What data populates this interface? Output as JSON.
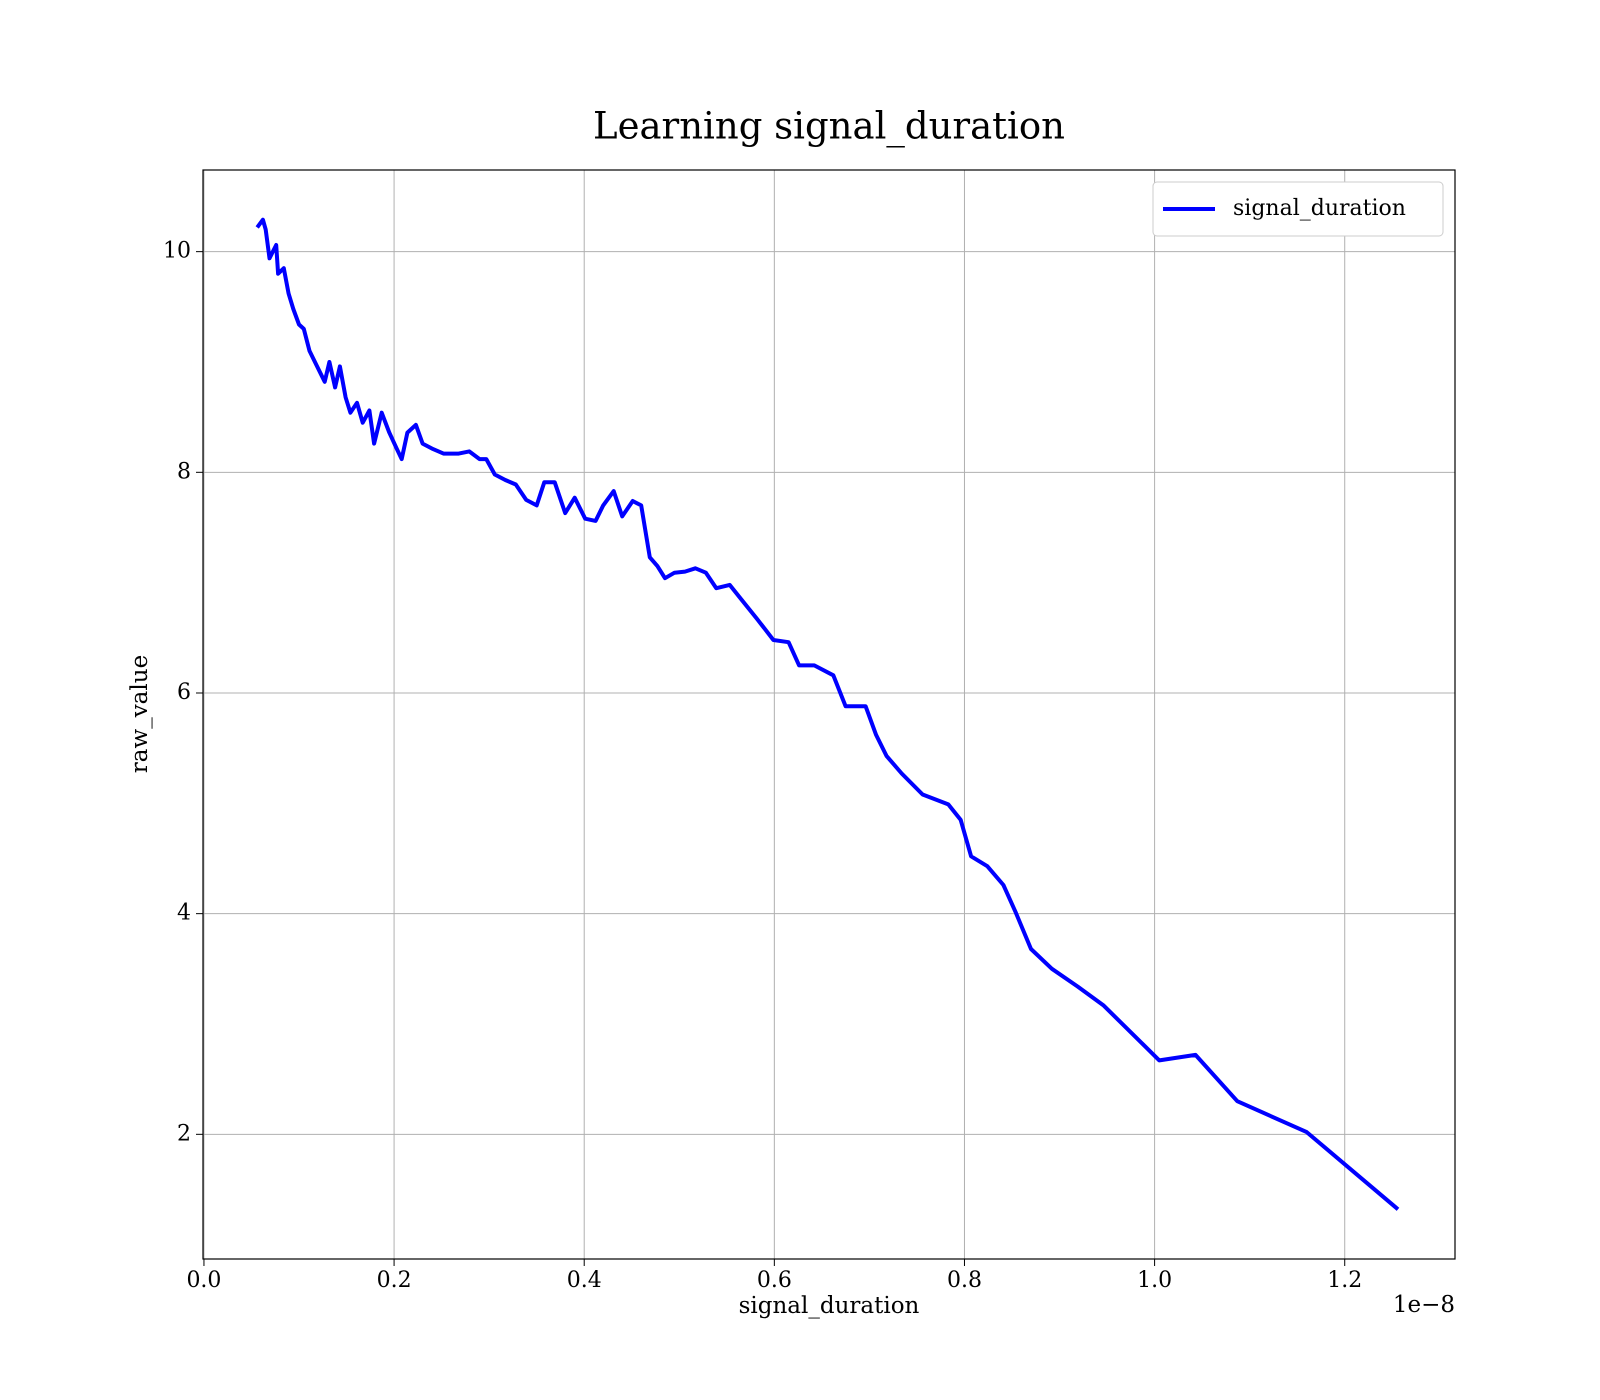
{
  "chart_data": {
    "type": "line",
    "title": "Learning signal_duration",
    "x_label": "signal_duration",
    "y_label": "raw_value",
    "x_offset_label": "1e−8",
    "x": [
      0.056,
      0.062,
      0.065,
      0.069,
      0.076,
      0.078,
      0.084,
      0.089,
      0.094,
      0.1,
      0.105,
      0.111,
      0.119,
      0.127,
      0.132,
      0.138,
      0.143,
      0.149,
      0.154,
      0.161,
      0.167,
      0.174,
      0.179,
      0.187,
      0.195,
      0.203,
      0.208,
      0.214,
      0.223,
      0.23,
      0.241,
      0.252,
      0.268,
      0.279,
      0.29,
      0.297,
      0.306,
      0.317,
      0.328,
      0.339,
      0.35,
      0.358,
      0.369,
      0.38,
      0.39,
      0.401,
      0.412,
      0.42,
      0.431,
      0.44,
      0.451,
      0.46,
      0.469,
      0.477,
      0.485,
      0.495,
      0.506,
      0.517,
      0.528,
      0.539,
      0.553,
      0.566,
      0.582,
      0.599,
      0.615,
      0.626,
      0.642,
      0.662,
      0.675,
      0.696,
      0.707,
      0.718,
      0.734,
      0.756,
      0.783,
      0.796,
      0.807,
      0.824,
      0.841,
      0.854,
      0.87,
      0.892,
      0.919,
      0.946,
      1.005,
      1.043,
      1.087,
      1.16,
      1.256
    ],
    "series": [
      {
        "name": "signal_duration",
        "color": "#0000ff",
        "values": [
          10.22,
          10.29,
          10.2,
          9.94,
          10.06,
          9.8,
          9.85,
          9.62,
          9.48,
          9.34,
          9.3,
          9.1,
          8.96,
          8.82,
          9.0,
          8.77,
          8.96,
          8.68,
          8.54,
          8.63,
          8.45,
          8.56,
          8.26,
          8.54,
          8.36,
          8.21,
          8.12,
          8.36,
          8.43,
          8.26,
          8.21,
          8.17,
          8.17,
          8.19,
          8.12,
          8.12,
          7.98,
          7.93,
          7.89,
          7.75,
          7.7,
          7.91,
          7.91,
          7.63,
          7.77,
          7.58,
          7.56,
          7.7,
          7.83,
          7.6,
          7.74,
          7.7,
          7.23,
          7.15,
          7.04,
          7.09,
          7.1,
          7.13,
          7.09,
          6.95,
          6.98,
          6.84,
          6.67,
          6.48,
          6.46,
          6.25,
          6.25,
          6.16,
          5.88,
          5.88,
          5.62,
          5.43,
          5.27,
          5.08,
          4.99,
          4.85,
          4.52,
          4.43,
          4.26,
          4.01,
          3.68,
          3.5,
          3.34,
          3.17,
          2.67,
          2.72,
          2.3,
          2.02,
          1.32
        ]
      }
    ],
    "xlim": [
      -0.001,
      1.316
    ],
    "ylim": [
      0.87,
      10.74
    ],
    "xticks": [
      {
        "value": 0,
        "label": "0.0"
      },
      0.2,
      0.4,
      0.6,
      0.8,
      {
        "value": 1,
        "label": "1.0"
      },
      1.2
    ],
    "yticks": [
      2,
      4,
      6,
      8,
      10
    ],
    "grid": true,
    "legend": "upper right"
  }
}
